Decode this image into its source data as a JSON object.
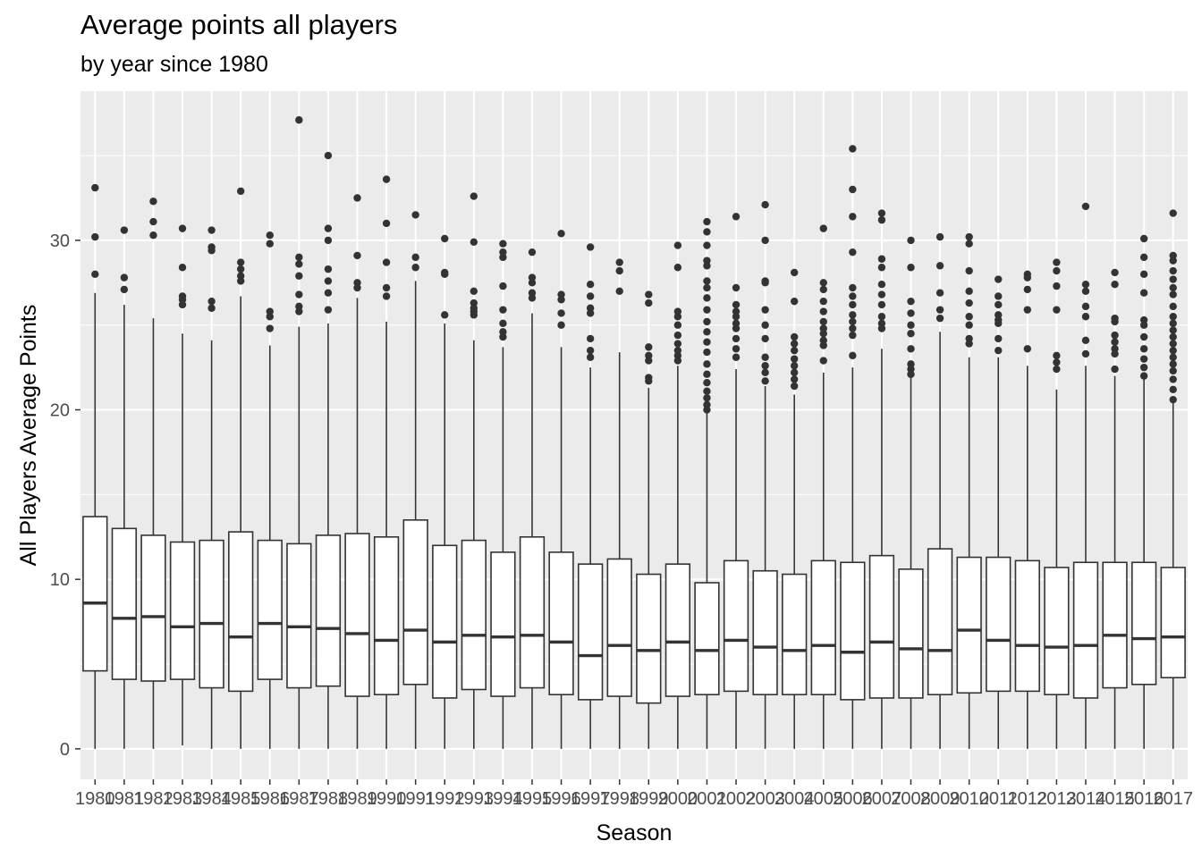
{
  "chart_data": {
    "type": "boxplot",
    "title": "Average points all players",
    "subtitle": "by year since 1980",
    "xlabel": "Season",
    "ylabel": "All Players Average Points",
    "ylim": [
      -1.8,
      38.8
    ],
    "yticks": [
      0,
      10,
      20,
      30
    ],
    "grid": true,
    "legend": "none",
    "colors": {
      "panel": "#ebebeb",
      "grid": "#ffffff",
      "box_fill": "#ffffff",
      "box_line": "#333333",
      "outlier": "#333333",
      "tick_label": "#4d4d4d"
    },
    "boxes": [
      {
        "season": "1980",
        "lower": 0,
        "q1": 4.6,
        "median": 8.6,
        "q3": 13.7,
        "upper": 26.9,
        "outliers": [
          33.1,
          30.2,
          28.0
        ]
      },
      {
        "season": "1981",
        "lower": 0,
        "q1": 4.1,
        "median": 7.7,
        "q3": 13.0,
        "upper": 26.2,
        "outliers": [
          30.6,
          27.8,
          27.1
        ]
      },
      {
        "season": "1982",
        "lower": 0,
        "q1": 4.0,
        "median": 7.8,
        "q3": 12.6,
        "upper": 25.4,
        "outliers": [
          32.3,
          31.1,
          30.3
        ]
      },
      {
        "season": "1983",
        "lower": 0.2,
        "q1": 4.1,
        "median": 7.2,
        "q3": 12.2,
        "upper": 24.5,
        "outliers": [
          30.7,
          28.4,
          26.7,
          26.5,
          26.2
        ]
      },
      {
        "season": "1984",
        "lower": 0,
        "q1": 3.6,
        "median": 7.4,
        "q3": 12.3,
        "upper": 24.1,
        "outliers": [
          30.6,
          29.6,
          29.4,
          26.4,
          26.0
        ]
      },
      {
        "season": "1985",
        "lower": 0,
        "q1": 3.4,
        "median": 6.6,
        "q3": 12.8,
        "upper": 26.7,
        "outliers": [
          32.9,
          28.7,
          28.3,
          27.9,
          27.6
        ]
      },
      {
        "season": "1986",
        "lower": 0,
        "q1": 4.1,
        "median": 7.4,
        "q3": 12.3,
        "upper": 23.8,
        "outliers": [
          30.3,
          29.8,
          25.8,
          25.5,
          24.8
        ]
      },
      {
        "season": "1987",
        "lower": 0,
        "q1": 3.6,
        "median": 7.2,
        "q3": 12.1,
        "upper": 24.9,
        "outliers": [
          37.1,
          29.0,
          28.6,
          27.9,
          26.8,
          26.1,
          25.8
        ]
      },
      {
        "season": "1988",
        "lower": 0,
        "q1": 3.7,
        "median": 7.1,
        "q3": 12.6,
        "upper": 25.1,
        "outliers": [
          35.0,
          30.7,
          30.0,
          28.3,
          27.6,
          26.9,
          25.9
        ]
      },
      {
        "season": "1989",
        "lower": 0,
        "q1": 3.1,
        "median": 6.8,
        "q3": 12.7,
        "upper": 26.6,
        "outliers": [
          32.5,
          29.1,
          27.5,
          27.2
        ]
      },
      {
        "season": "1990",
        "lower": 0,
        "q1": 3.2,
        "median": 6.4,
        "q3": 12.5,
        "upper": 25.2,
        "outliers": [
          33.6,
          31.0,
          28.7,
          27.2,
          26.7
        ]
      },
      {
        "season": "1991",
        "lower": 0,
        "q1": 3.8,
        "median": 7.0,
        "q3": 13.5,
        "upper": 27.6,
        "outliers": [
          31.5,
          29.0,
          28.4
        ]
      },
      {
        "season": "1992",
        "lower": 0,
        "q1": 3.0,
        "median": 6.3,
        "q3": 12.0,
        "upper": 25.1,
        "outliers": [
          30.1,
          28.1,
          28.0,
          25.6
        ]
      },
      {
        "season": "1993",
        "lower": 0,
        "q1": 3.5,
        "median": 6.7,
        "q3": 12.3,
        "upper": 24.1,
        "outliers": [
          32.6,
          29.9,
          27.0,
          26.3,
          26.0,
          25.8,
          25.6
        ]
      },
      {
        "season": "1994",
        "lower": 0,
        "q1": 3.1,
        "median": 6.6,
        "q3": 11.6,
        "upper": 23.7,
        "outliers": [
          29.8,
          29.3,
          29.0,
          27.3,
          25.9,
          25.1,
          24.6,
          24.3
        ]
      },
      {
        "season": "1995",
        "lower": 0,
        "q1": 3.6,
        "median": 6.7,
        "q3": 12.5,
        "upper": 25.7,
        "outliers": [
          29.3,
          27.8,
          27.5,
          26.9,
          26.6
        ]
      },
      {
        "season": "1996",
        "lower": 0,
        "q1": 3.2,
        "median": 6.3,
        "q3": 11.6,
        "upper": 23.7,
        "outliers": [
          30.4,
          26.8,
          26.5,
          25.7,
          25.0
        ]
      },
      {
        "season": "1997",
        "lower": 0,
        "q1": 2.9,
        "median": 5.5,
        "q3": 10.9,
        "upper": 22.5,
        "outliers": [
          29.6,
          27.4,
          26.7,
          26.0,
          25.7,
          24.2,
          23.5,
          23.1
        ]
      },
      {
        "season": "1998",
        "lower": 0,
        "q1": 3.1,
        "median": 6.1,
        "q3": 11.2,
        "upper": 23.4,
        "outliers": [
          28.7,
          28.2,
          27.0
        ]
      },
      {
        "season": "1999",
        "lower": 0,
        "q1": 2.7,
        "median": 5.8,
        "q3": 10.3,
        "upper": 21.3,
        "outliers": [
          26.8,
          26.3,
          23.7,
          23.2,
          22.9,
          21.9,
          21.7
        ]
      },
      {
        "season": "2000",
        "lower": 0,
        "q1": 3.1,
        "median": 6.3,
        "q3": 10.9,
        "upper": 22.6,
        "outliers": [
          29.7,
          28.4,
          25.8,
          25.5,
          25.0,
          24.4,
          23.9,
          23.5,
          23.2,
          22.9
        ]
      },
      {
        "season": "2001",
        "lower": 0,
        "q1": 3.2,
        "median": 5.8,
        "q3": 9.8,
        "upper": 19.8,
        "outliers": [
          31.1,
          30.5,
          29.7,
          28.8,
          28.5,
          27.6,
          27.2,
          26.6,
          25.9,
          25.2,
          24.6,
          24.0,
          23.4,
          22.7,
          22.1,
          21.6,
          21.1,
          20.7,
          20.3,
          20.0
        ]
      },
      {
        "season": "2002",
        "lower": 0,
        "q1": 3.4,
        "median": 6.4,
        "q3": 11.1,
        "upper": 22.4,
        "outliers": [
          31.4,
          27.2,
          26.2,
          25.8,
          25.5,
          25.1,
          24.8,
          24.2,
          23.6,
          23.1
        ]
      },
      {
        "season": "2003",
        "lower": 0,
        "q1": 3.2,
        "median": 6.0,
        "q3": 10.5,
        "upper": 21.4,
        "outliers": [
          32.1,
          30.0,
          27.6,
          27.5,
          25.9,
          25.0,
          24.2,
          23.1,
          22.6,
          22.2,
          21.7
        ]
      },
      {
        "season": "2004",
        "lower": 0,
        "q1": 3.2,
        "median": 5.8,
        "q3": 10.3,
        "upper": 20.9,
        "outliers": [
          28.1,
          26.4,
          24.3,
          23.9,
          23.5,
          23.0,
          22.6,
          22.2,
          21.8,
          21.4
        ]
      },
      {
        "season": "2005",
        "lower": 0,
        "q1": 3.2,
        "median": 6.1,
        "q3": 11.1,
        "upper": 22.2,
        "outliers": [
          30.7,
          27.5,
          27.1,
          26.4,
          25.8,
          25.2,
          24.8,
          24.5,
          24.1,
          23.8,
          22.9
        ]
      },
      {
        "season": "2006",
        "lower": 0,
        "q1": 2.9,
        "median": 5.7,
        "q3": 11.0,
        "upper": 22.5,
        "outliers": [
          35.4,
          33.0,
          31.4,
          29.3,
          27.2,
          26.7,
          26.2,
          25.6,
          25.2,
          24.8,
          24.4,
          23.2
        ]
      },
      {
        "season": "2007",
        "lower": 0,
        "q1": 3.0,
        "median": 6.3,
        "q3": 11.4,
        "upper": 23.6,
        "outliers": [
          31.6,
          31.2,
          28.9,
          28.4,
          27.4,
          26.8,
          26.2,
          25.5,
          25.1,
          24.8
        ]
      },
      {
        "season": "2008",
        "lower": 0,
        "q1": 3.0,
        "median": 5.9,
        "q3": 10.6,
        "upper": 21.9,
        "outliers": [
          30.0,
          28.4,
          26.4,
          25.7,
          25.0,
          24.5,
          23.6,
          22.7,
          22.4,
          22.1
        ]
      },
      {
        "season": "2009",
        "lower": 0,
        "q1": 3.2,
        "median": 5.8,
        "q3": 11.8,
        "upper": 24.6,
        "outliers": [
          30.2,
          28.5,
          26.9,
          25.9,
          25.4
        ]
      },
      {
        "season": "2010",
        "lower": 0,
        "q1": 3.3,
        "median": 7.0,
        "q3": 11.3,
        "upper": 23.1,
        "outliers": [
          30.2,
          29.8,
          28.2,
          27.0,
          26.3,
          25.5,
          25.0,
          24.2,
          23.9
        ]
      },
      {
        "season": "2011",
        "lower": 0,
        "q1": 3.4,
        "median": 6.4,
        "q3": 11.3,
        "upper": 23.1,
        "outliers": [
          27.7,
          26.7,
          26.2,
          25.6,
          25.3,
          25.1,
          24.2,
          23.5
        ]
      },
      {
        "season": "2012",
        "lower": 0,
        "q1": 3.4,
        "median": 6.1,
        "q3": 11.1,
        "upper": 22.6,
        "outliers": [
          28.0,
          27.8,
          27.1,
          25.9,
          23.6
        ]
      },
      {
        "season": "2013",
        "lower": 0,
        "q1": 3.2,
        "median": 6.0,
        "q3": 10.7,
        "upper": 21.2,
        "outliers": [
          28.7,
          28.2,
          27.3,
          25.9,
          23.2,
          22.8,
          22.4
        ]
      },
      {
        "season": "2014",
        "lower": 0,
        "q1": 3.0,
        "median": 6.1,
        "q3": 11.0,
        "upper": 22.6,
        "outliers": [
          32.0,
          27.4,
          27.0,
          26.1,
          25.5,
          24.1,
          23.3
        ]
      },
      {
        "season": "2015",
        "lower": 0,
        "q1": 3.6,
        "median": 6.7,
        "q3": 11.0,
        "upper": 22.0,
        "outliers": [
          28.1,
          27.4,
          25.4,
          25.2,
          24.4,
          24.0,
          23.6,
          23.3,
          22.4
        ]
      },
      {
        "season": "2016",
        "lower": 0,
        "q1": 3.8,
        "median": 6.5,
        "q3": 11.0,
        "upper": 21.8,
        "outliers": [
          30.1,
          29.0,
          28.0,
          26.9,
          25.3,
          25.0,
          24.3,
          23.6,
          23.0,
          22.5,
          22.0
        ]
      },
      {
        "season": "2017",
        "lower": 0,
        "q1": 4.2,
        "median": 6.6,
        "q3": 10.7,
        "upper": 20.5,
        "outliers": [
          31.6,
          29.1,
          28.8,
          28.2,
          27.7,
          27.2,
          26.8,
          26.1,
          25.5,
          25.1,
          24.7,
          24.3,
          23.9,
          23.5,
          23.1,
          22.7,
          22.3,
          21.8,
          21.2,
          20.6
        ]
      }
    ]
  }
}
